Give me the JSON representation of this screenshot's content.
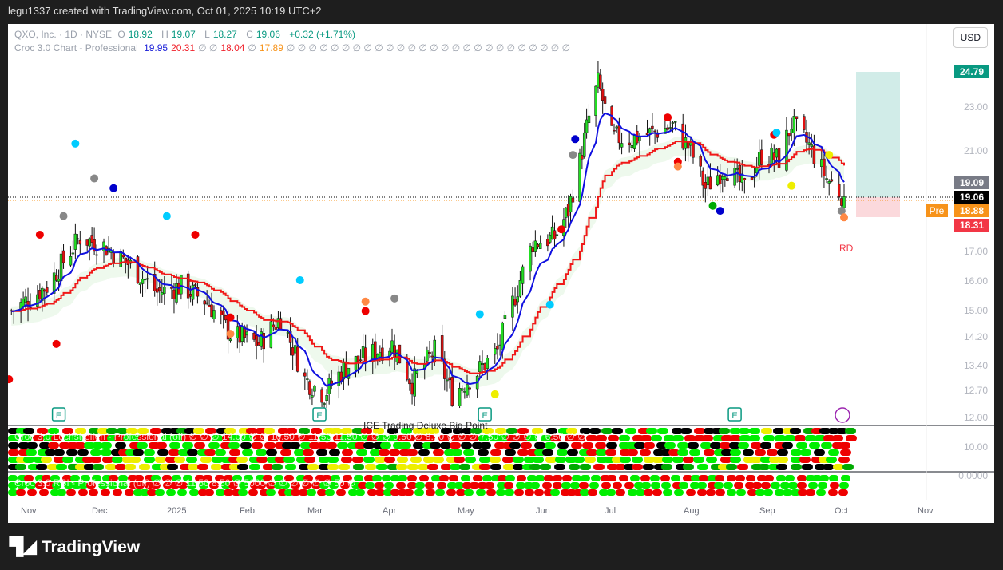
{
  "header": {
    "attribution": "legu1337 created with TradingView.com, Oct 01, 2025 10:19 UTC+2"
  },
  "legend": {
    "symbol": "QXO, Inc. · 1D · NYSE",
    "o_label": "O",
    "open": "18.92",
    "h_label": "H",
    "high": "19.07",
    "l_label": "L",
    "low": "18.27",
    "c_label": "C",
    "close": "19.06",
    "change": "+0.32 (+1.71%)",
    "indicator": "Croc 3.0 Chart - Professional",
    "v1": "19.95",
    "v2": "20.31",
    "v3": "∅ ∅",
    "v4": "18.04",
    "v5": "∅",
    "v6": "17.89",
    "rest": "∅ ∅ ∅ ∅ ∅ ∅ ∅ ∅ ∅ ∅ ∅ ∅ ∅ ∅ ∅ ∅ ∅ ∅ ∅ ∅   ∅ ∅ ∅ ∅ ∅ ∅"
  },
  "currency": "USD",
  "price_axis": {
    "ticks": [
      "23.00",
      "21.00",
      "17.00",
      "16.00",
      "15.00",
      "14.20",
      "13.40",
      "12.70",
      "12.00"
    ],
    "indicator_ticks": [
      "10.00",
      "0.0000"
    ],
    "tags": {
      "target": "24.79",
      "high": "19.09",
      "last": "19.06",
      "pre_label": "Pre",
      "pre": "18.88",
      "stop": "18.31"
    }
  },
  "time_axis": [
    "Nov",
    "Dec",
    "2025",
    "Feb",
    "Mar",
    "Apr",
    "May",
    "Jun",
    "Jul",
    "Aug",
    "Sep",
    "Oct",
    "Nov"
  ],
  "annotations": {
    "rd": "RD",
    "earnings": "E"
  },
  "indicators": {
    "pane1": "Croc 3.0 Lochstreifen - Professional (off)  ∅ ∅ ∅ 14.00 ∅ ∅ 10.50 ∅ 11.50 11.50 ∅ ∅ ∅ 9.50 ∅ 8.50 ∅ ∅ ∅ 7.50 ∅ ∅ ∅ ∅ 6.50 ∅ ∅",
    "pane1b": "ICE Trading Deluxe Big Point",
    "pane2": "Croc 3.0 RSI - Professional (off)  ∅ ∅ ∅ 11.50 8.50 ∅ 5000 ∅ ∅ ∅ ∅ ∅ ∅ 50 ∅"
  },
  "footer": {
    "brand": "TradingView"
  },
  "colors": {
    "up": "#089981",
    "down": "#f23645",
    "candle_up": "#22dd22",
    "candle_down": "#e01010",
    "fast": "#1010e0",
    "slow": "#f01818",
    "target": "#d1ece8",
    "risk": "#fbd9dc"
  },
  "chart_data": {
    "type": "candlestick",
    "scale": "log",
    "ylim": [
      11.8,
      25.5
    ],
    "xlim": [
      "2024-10-22",
      "2025-11-05"
    ],
    "closes": [
      [
        "2024-10-24",
        15.0
      ],
      [
        "2024-11-08",
        15.8
      ],
      [
        "2024-11-22",
        17.5
      ],
      [
        "2024-12-02",
        17.2
      ],
      [
        "2024-12-13",
        16.5
      ],
      [
        "2024-12-24",
        15.6
      ],
      [
        "2025-01-03",
        15.8
      ],
      [
        "2025-01-14",
        15.3
      ],
      [
        "2025-01-24",
        14.3
      ],
      [
        "2025-02-05",
        14.0
      ],
      [
        "2025-02-14",
        14.8
      ],
      [
        "2025-02-24",
        13.0
      ],
      [
        "2025-03-04",
        12.6
      ],
      [
        "2025-03-12",
        13.3
      ],
      [
        "2025-03-20",
        13.6
      ],
      [
        "2025-04-01",
        14.0
      ],
      [
        "2025-04-09",
        12.9
      ],
      [
        "2025-04-18",
        13.8
      ],
      [
        "2025-04-25",
        12.6
      ],
      [
        "2025-05-05",
        13.2
      ],
      [
        "2025-05-13",
        13.8
      ],
      [
        "2025-05-20",
        15.5
      ],
      [
        "2025-05-27",
        17.3
      ],
      [
        "2025-06-05",
        17.5
      ],
      [
        "2025-06-11",
        18.5
      ],
      [
        "2025-06-16",
        20.5
      ],
      [
        "2025-06-20",
        22.5
      ],
      [
        "2025-06-24",
        24.2
      ],
      [
        "2025-06-30",
        21.6
      ],
      [
        "2025-07-08",
        21.5
      ],
      [
        "2025-07-16",
        21.8
      ],
      [
        "2025-07-24",
        22.1
      ],
      [
        "2025-07-31",
        21.0
      ],
      [
        "2025-08-06",
        19.4
      ],
      [
        "2025-08-14",
        20.3
      ],
      [
        "2025-08-22",
        19.4
      ],
      [
        "2025-08-29",
        20.8
      ],
      [
        "2025-09-05",
        20.6
      ],
      [
        "2025-09-10",
        22.2
      ],
      [
        "2025-09-17",
        21.2
      ],
      [
        "2025-09-24",
        19.8
      ],
      [
        "2025-10-01",
        19.06
      ]
    ],
    "markers": [
      [
        "2024-10-23",
        13.0,
        "#e00"
      ],
      [
        "2024-11-05",
        17.6,
        "#e00"
      ],
      [
        "2024-11-12",
        14.0,
        "#e00"
      ],
      [
        "2024-11-15",
        18.3,
        "#888"
      ],
      [
        "2024-11-20",
        21.3,
        "#0cf"
      ],
      [
        "2024-11-28",
        19.8,
        "#888"
      ],
      [
        "2024-12-06",
        19.4,
        "#00c"
      ],
      [
        "2024-12-28",
        18.3,
        "#0cf"
      ],
      [
        "2025-01-09",
        17.6,
        "#e00"
      ],
      [
        "2025-01-24",
        14.8,
        "#e00"
      ],
      [
        "2025-01-24",
        14.3,
        "#f84"
      ],
      [
        "2025-02-22",
        16.0,
        "#0cf"
      ],
      [
        "2025-03-21",
        15.3,
        "#f84"
      ],
      [
        "2025-03-21",
        15.0,
        "#e00"
      ],
      [
        "2025-04-02",
        15.4,
        "#888"
      ],
      [
        "2025-05-06",
        14.9,
        "#0cf"
      ],
      [
        "2025-05-12",
        12.6,
        "#ee0"
      ],
      [
        "2025-06-03",
        15.2,
        "#0cf"
      ],
      [
        "2025-06-08",
        17.8,
        "#e00"
      ],
      [
        "2025-06-13",
        20.8,
        "#888"
      ],
      [
        "2025-06-14",
        21.5,
        "#00c"
      ],
      [
        "2025-07-26",
        20.5,
        "#e00"
      ],
      [
        "2025-07-26",
        20.3,
        "#f84"
      ],
      [
        "2025-07-22",
        22.5,
        "#e00"
      ],
      [
        "2025-08-12",
        18.5,
        "#00c"
      ],
      [
        "2025-08-09",
        18.7,
        "#0a0"
      ],
      [
        "2025-09-03",
        21.7,
        "#e00"
      ],
      [
        "2025-09-04",
        21.8,
        "#0cf"
      ],
      [
        "2025-09-10",
        19.5,
        "#ee0"
      ],
      [
        "2025-09-25",
        20.8,
        "#ee0"
      ],
      [
        "2025-09-30",
        18.5,
        "#888"
      ],
      [
        "2025-10-01",
        18.25,
        "#f84"
      ]
    ],
    "earnings": [
      "2024-11-13",
      "2025-03-02",
      "2025-05-08",
      "2025-08-18"
    ]
  }
}
